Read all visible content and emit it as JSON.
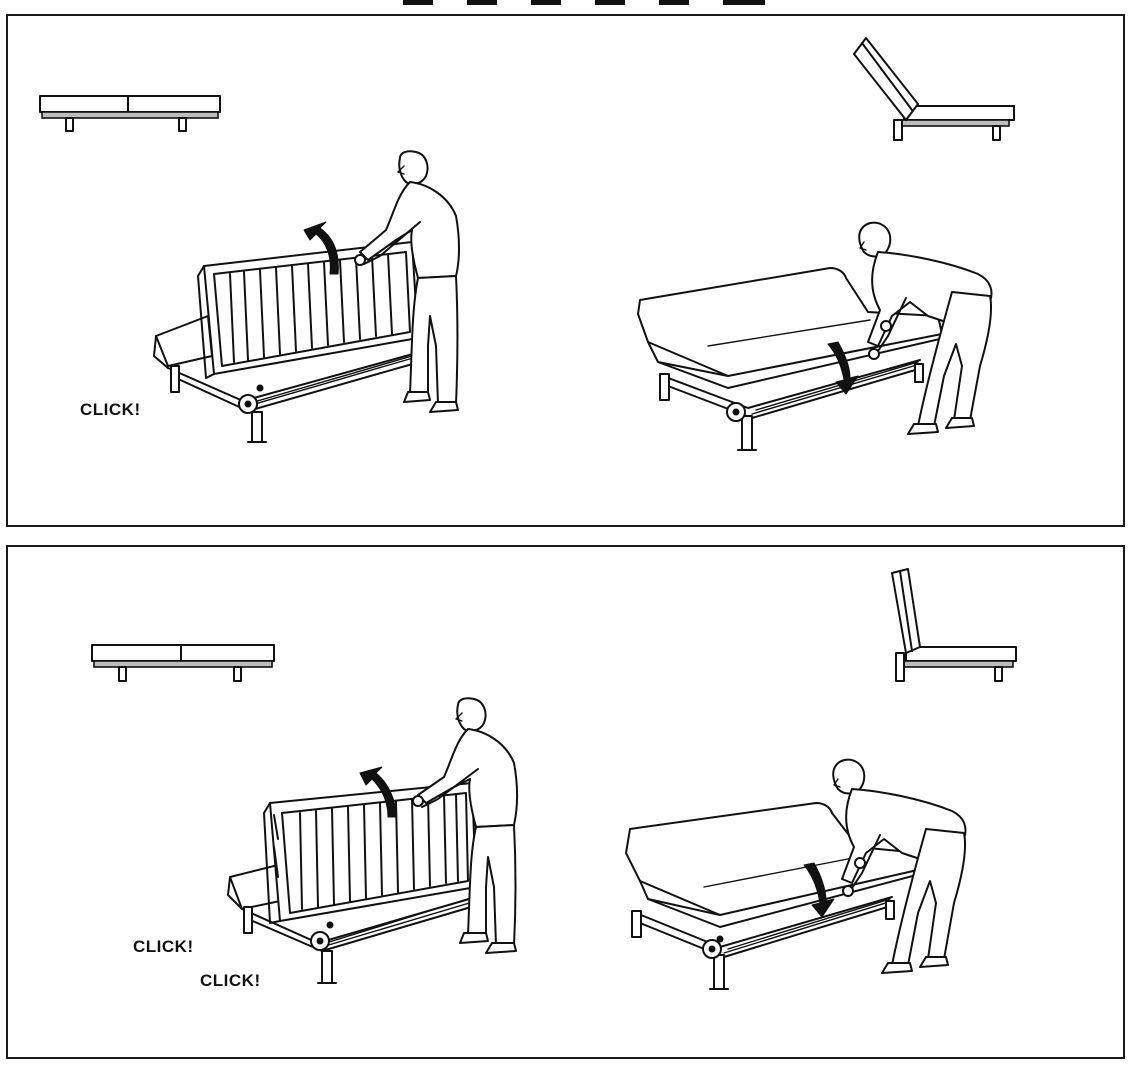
{
  "panels": [
    {
      "id": "panel-1",
      "labels": [
        "CLICK!"
      ]
    },
    {
      "id": "panel-2",
      "labels": [
        "CLICK!",
        "CLICK!"
      ]
    }
  ]
}
